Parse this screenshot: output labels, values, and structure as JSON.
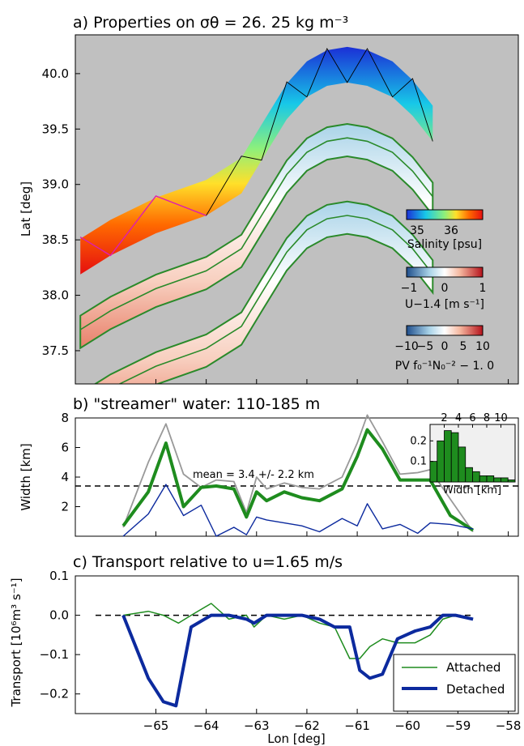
{
  "chart_data": [
    {
      "type": "heatmap",
      "title": "a) Properties on σθ = 26. 25 kg m⁻³",
      "ylabel": "Lat [deg]",
      "xlim": [
        -66.6,
        -57.8
      ],
      "ylim": [
        37.2,
        40.35
      ],
      "yticks": [
        37.5,
        38.0,
        38.5,
        39.0,
        39.5,
        40.0
      ],
      "ytick_labels": [
        "37.5",
        "38.0",
        "38.5",
        "39.0",
        "39.5",
        "40.0"
      ],
      "colorbars": [
        {
          "label": "Salinity [psu]",
          "tick_labels": [
            "35",
            "36"
          ],
          "colors": [
            "#1b2fd6",
            "#17c8e8",
            "#8ff07a",
            "#ffe02a",
            "#ff6a00",
            "#e60f0f"
          ]
        },
        {
          "label": "U−1.4 [m s⁻¹]",
          "tick_labels": [
            "−1",
            "0",
            "1"
          ],
          "colors": [
            "#1f4e8c",
            "#a9d3e8",
            "#ffffff",
            "#f5b8a0",
            "#b5121b"
          ]
        },
        {
          "label": "PV f₀⁻¹N₀⁻² − 1. 0",
          "tick_labels": [
            "−10",
            "−5",
            "0",
            "5",
            "10"
          ],
          "colors": [
            "#1f4e8c",
            "#a9d3e8",
            "#ffffff",
            "#f5b8a0",
            "#b5121b"
          ]
        }
      ],
      "ribbon_centerline": {
        "lon": [
          -66.5,
          -65.9,
          -65.0,
          -64.0,
          -63.3,
          -62.9,
          -62.4,
          -62.0,
          -61.6,
          -61.2,
          -60.8,
          -60.3,
          -59.9,
          -59.5
        ],
        "lat": [
          38.35,
          38.52,
          38.72,
          38.88,
          39.08,
          39.38,
          39.75,
          39.95,
          40.05,
          40.08,
          40.05,
          39.95,
          39.78,
          39.55
        ]
      }
    },
    {
      "type": "line",
      "title": "b) \"streamer\" water: 110-185 m",
      "ylabel": "Width [km]",
      "xlim": [
        -66.6,
        -57.8
      ],
      "ylim": [
        0,
        8
      ],
      "yticks": [
        2,
        4,
        6,
        8
      ],
      "ytick_labels": [
        "2",
        "4",
        "6",
        "8"
      ],
      "annotation": "mean = 3.4 +/- 2.2 km",
      "mean_line": 3.4,
      "x": [
        -65.65,
        -65.15,
        -64.8,
        -64.45,
        -64.1,
        -63.8,
        -63.45,
        -63.2,
        -63.0,
        -62.8,
        -62.45,
        -62.1,
        -61.75,
        -61.3,
        -61.0,
        -60.8,
        -60.5,
        -60.15,
        -59.8,
        -59.55,
        -59.15,
        -58.7
      ],
      "series": [
        {
          "values": [
            0.6,
            5.0,
            7.6,
            4.2,
            3.3,
            3.8,
            3.7,
            1.6,
            4.0,
            3.2,
            3.6,
            3.3,
            3.2,
            4.0,
            6.3,
            8.2,
            6.4,
            4.2,
            4.3,
            4.5,
            2.5,
            0.3
          ],
          "color": "#999999"
        },
        {
          "values": [
            0.7,
            3.0,
            6.3,
            2.0,
            3.3,
            3.4,
            3.2,
            1.3,
            3.0,
            2.4,
            3.0,
            2.6,
            2.4,
            3.2,
            5.4,
            7.2,
            5.9,
            3.8,
            3.8,
            3.8,
            1.4,
            0.4
          ],
          "color": "#1e8c1e"
        },
        {
          "values": [
            0.0,
            1.5,
            3.5,
            1.4,
            2.1,
            0.0,
            0.6,
            0.1,
            1.3,
            1.1,
            0.9,
            0.7,
            0.3,
            1.2,
            0.7,
            2.2,
            0.5,
            0.8,
            0.2,
            0.9,
            0.8,
            0.5
          ],
          "color": "#0c2a9e"
        }
      ],
      "inset": {
        "type": "bar",
        "xlabel": "Width [km]",
        "xlim": [
          0,
          12
        ],
        "xticks": [
          2,
          4,
          6,
          8,
          10
        ],
        "xtick_labels": [
          "2",
          "4",
          "6",
          "8",
          "10"
        ],
        "ylim": [
          0,
          0.28
        ],
        "yticks": [
          0.1,
          0.2
        ],
        "ytick_labels": [
          "0.1",
          "0.2"
        ],
        "bin_edges": [
          0,
          1,
          2,
          3,
          4,
          5,
          6,
          7,
          8,
          9,
          10,
          11,
          12
        ],
        "values": [
          0.1,
          0.2,
          0.25,
          0.24,
          0.17,
          0.07,
          0.05,
          0.03,
          0.03,
          0.02,
          0.02,
          0.01
        ]
      }
    },
    {
      "type": "line",
      "title": "c) Transport relative to u=1.65 m/s",
      "xlabel": "Lon [deg]",
      "ylabel": "Transport [10⁶m³ s⁻¹]",
      "xlim": [
        -66.6,
        -57.8
      ],
      "ylim": [
        -0.25,
        0.1
      ],
      "yticks": [
        0.1,
        0.0,
        -0.1,
        -0.2
      ],
      "ytick_labels": [
        "0.1",
        "0.0",
        "−0.1",
        "−0.2"
      ],
      "xticks": [
        -65,
        -64,
        -63,
        -62,
        -61,
        -60,
        -59,
        -58
      ],
      "xtick_labels": [
        "−65",
        "−64",
        "−63",
        "−62",
        "−61",
        "−60",
        "−59",
        "−58"
      ],
      "legend_position": "lower-right",
      "series": [
        {
          "name": "Attached",
          "color": "#1e8c1e",
          "x": [
            -65.65,
            -65.15,
            -64.85,
            -64.55,
            -64.3,
            -63.9,
            -63.55,
            -63.2,
            -63.05,
            -62.8,
            -62.45,
            -62.1,
            -61.75,
            -61.45,
            -61.15,
            -60.95,
            -60.75,
            -60.5,
            -60.2,
            -59.85,
            -59.55,
            -59.3,
            -59.05,
            -58.7
          ],
          "y": [
            0.0,
            0.01,
            0.0,
            -0.02,
            0.0,
            0.03,
            -0.01,
            0.0,
            -0.03,
            0.0,
            -0.01,
            0.0,
            -0.02,
            -0.03,
            -0.11,
            -0.11,
            -0.08,
            -0.06,
            -0.07,
            -0.07,
            -0.05,
            -0.01,
            0.0,
            -0.01
          ]
        },
        {
          "name": "Detached",
          "color": "#0c2a9e",
          "x": [
            -65.65,
            -65.15,
            -64.85,
            -64.6,
            -64.3,
            -63.9,
            -63.55,
            -63.2,
            -63.05,
            -62.8,
            -62.45,
            -62.1,
            -61.75,
            -61.45,
            -61.15,
            -60.95,
            -60.75,
            -60.5,
            -60.2,
            -59.85,
            -59.55,
            -59.3,
            -59.05,
            -58.7
          ],
          "y": [
            0.0,
            -0.16,
            -0.22,
            -0.23,
            -0.03,
            0.0,
            0.0,
            -0.01,
            -0.02,
            0.0,
            0.0,
            0.0,
            -0.01,
            -0.03,
            -0.03,
            -0.14,
            -0.16,
            -0.15,
            -0.06,
            -0.04,
            -0.03,
            0.0,
            0.0,
            -0.01
          ]
        }
      ]
    }
  ]
}
